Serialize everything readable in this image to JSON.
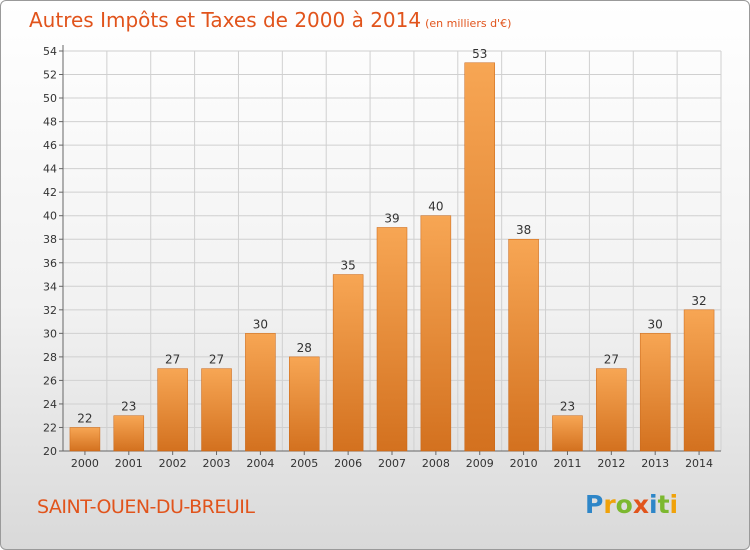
{
  "title": "Autres Impôts et Taxes de 2000 à 2014",
  "unit_label": "(en milliers d'€)",
  "commune": "SAINT-OUEN-DU-BREUIL",
  "logo": {
    "text": "Proxiti",
    "letters": [
      {
        "ch": "P",
        "color": "#2e86c8"
      },
      {
        "ch": "r",
        "color": "#f0a20a"
      },
      {
        "ch": "o",
        "color": "#7cb82f"
      },
      {
        "ch": "x",
        "color": "#e1541c"
      },
      {
        "ch": "i",
        "color": "#2e86c8"
      },
      {
        "ch": "t",
        "color": "#7cb82f"
      },
      {
        "ch": "i",
        "color": "#f0a20a"
      }
    ]
  },
  "colors": {
    "accent": "#e1541c",
    "bar_top": "#f7a654",
    "bar_bottom": "#d3711f",
    "bar_edge": "#c86414",
    "grid": "#d0d0d0",
    "text": "#333333"
  },
  "chart_data": {
    "type": "bar",
    "title": "Autres Impôts et Taxes de 2000 à 2014",
    "xlabel": "",
    "ylabel": "",
    "categories": [
      "2000",
      "2001",
      "2002",
      "2003",
      "2004",
      "2005",
      "2006",
      "2007",
      "2008",
      "2009",
      "2010",
      "2011",
      "2012",
      "2013",
      "2014"
    ],
    "values": [
      22,
      23,
      27,
      27,
      30,
      28,
      35,
      39,
      40,
      53,
      38,
      23,
      27,
      30,
      32
    ],
    "ylim": [
      20,
      54
    ],
    "ytick_step": 2,
    "grid": true,
    "legend": "none"
  }
}
